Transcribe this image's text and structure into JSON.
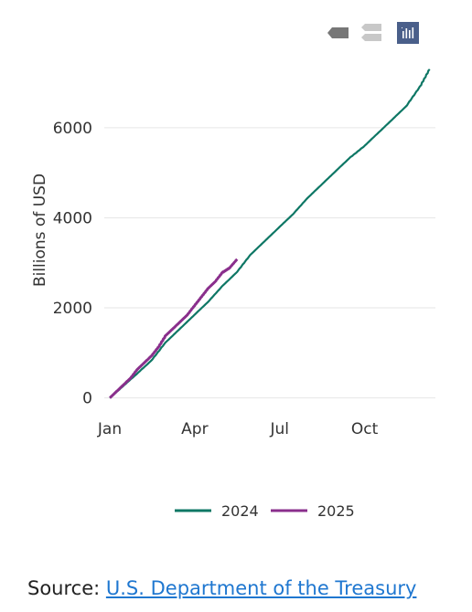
{
  "toolbar": {
    "icons": [
      "tag-icon",
      "stack-icon",
      "bar-chart-icon"
    ]
  },
  "chart_data": {
    "type": "line",
    "title": "",
    "xlabel": "",
    "ylabel": "Billions of USD",
    "x_ticks": [
      "Jan",
      "Apr",
      "Jul",
      "Oct"
    ],
    "x_tick_months": [
      0,
      3,
      6,
      9
    ],
    "y_ticks": [
      0,
      2000,
      4000,
      6000
    ],
    "xlim_months": [
      0,
      11.5
    ],
    "ylim": [
      -150,
      7500
    ],
    "grid": true,
    "legend_placement": "bottom",
    "series": [
      {
        "name": "2024",
        "color": "#0e7765",
        "x_months": [
          0,
          0.5,
          1,
          1.5,
          2,
          2.5,
          3,
          3.5,
          4,
          4.5,
          5,
          5.5,
          6,
          6.5,
          7,
          7.5,
          8,
          8.5,
          9,
          9.5,
          10,
          10.5,
          11,
          11.3
        ],
        "values": [
          0,
          280,
          560,
          850,
          1250,
          1550,
          1850,
          2150,
          2500,
          2800,
          3200,
          3500,
          3800,
          4100,
          4450,
          4750,
          5050,
          5350,
          5600,
          5900,
          6200,
          6500,
          6950,
          7300
        ]
      },
      {
        "name": "2025",
        "color": "#8a2f8c",
        "x_months": [
          0,
          0.25,
          0.5,
          0.75,
          1,
          1.25,
          1.5,
          1.75,
          2,
          2.25,
          2.5,
          2.75,
          3,
          3.25,
          3.5,
          3.75,
          4,
          4.25,
          4.5
        ],
        "values": [
          0,
          150,
          300,
          450,
          650,
          800,
          950,
          1150,
          1400,
          1550,
          1700,
          1850,
          2050,
          2250,
          2450,
          2600,
          2800,
          2900,
          3080
        ]
      }
    ]
  },
  "source": {
    "prefix": "Source: ",
    "link_text": "U.S. Department of the Treasury"
  }
}
